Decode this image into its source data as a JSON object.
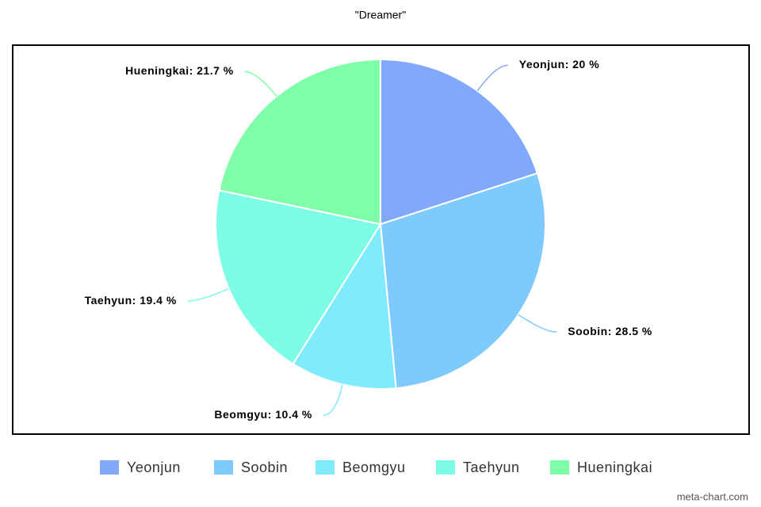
{
  "chart_data": {
    "type": "pie",
    "title": "\"Dreamer\"",
    "categories": [
      "Yeonjun",
      "Soobin",
      "Beomgyu",
      "Taehyun",
      "Hueningkai"
    ],
    "values": [
      20,
      28.5,
      10.4,
      19.4,
      21.7
    ],
    "value_labels": [
      "Yeonjun: 20 %",
      "Soobin: 28.5 %",
      "Beomgyu: 10.4 %",
      "Taehyun: 19.4 %",
      "Hueningkai: 21.7 %"
    ],
    "colors": [
      "#82a8fb",
      "#7ecafd",
      "#80ebfc",
      "#7dfde6",
      "#80fda9"
    ],
    "legend": "bottom"
  },
  "credit": "meta-chart.com"
}
